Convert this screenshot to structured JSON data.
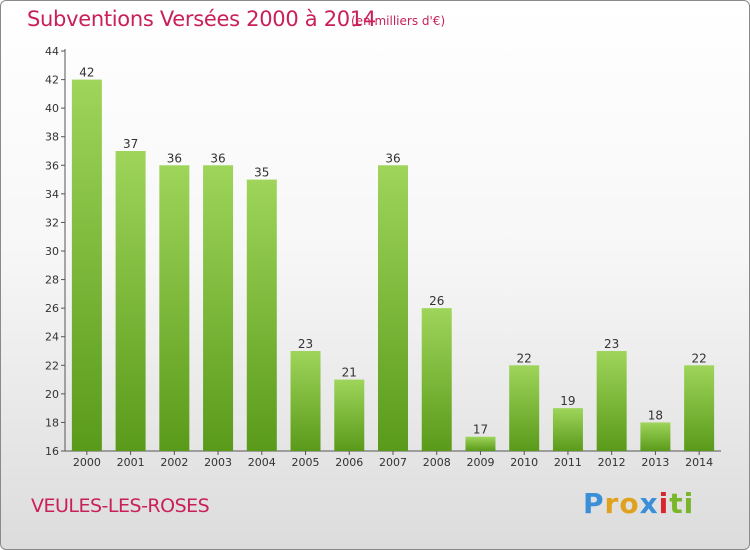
{
  "header": {
    "title": "Subventions Versées 2000 à 2014",
    "subtitle": "(en milliers d'€)"
  },
  "footer": {
    "commune": "VEULES-LES-ROSES",
    "logo_letters": [
      "P",
      "r",
      "o",
      "x",
      "i",
      "t",
      "i"
    ],
    "logo_colors": [
      "#3a8fd8",
      "#e0a21e",
      "#e0a21e",
      "#3a8fd8",
      "#d8262c",
      "#7ab62a",
      "#7ab62a"
    ]
  },
  "chart_data": {
    "type": "bar",
    "categories": [
      "2000",
      "2001",
      "2002",
      "2003",
      "2004",
      "2005",
      "2006",
      "2007",
      "2008",
      "2009",
      "2010",
      "2011",
      "2012",
      "2013",
      "2014"
    ],
    "values": [
      42,
      37,
      36,
      36,
      35,
      23,
      21,
      36,
      26,
      17,
      22,
      19,
      23,
      18,
      22
    ],
    "title": "Subventions Versées 2000 à 2014",
    "subtitle": "(en milliers d'€)",
    "ylim": [
      16,
      44
    ],
    "yticks": [
      16,
      18,
      20,
      22,
      24,
      26,
      28,
      30,
      32,
      34,
      36,
      38,
      40,
      42,
      44
    ],
    "grid": false,
    "data_labels": true,
    "bar_color_top": "#9ed55a",
    "bar_color_bottom": "#5a9a1a"
  }
}
